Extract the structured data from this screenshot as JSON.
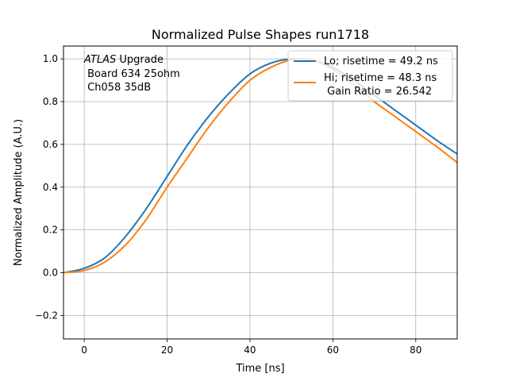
{
  "chart_data": {
    "type": "line",
    "title": "Normalized Pulse Shapes run1718",
    "xlabel": "Time [ns]",
    "ylabel": "Normalized Amplitude (A.U.)",
    "xlim": [
      -5,
      90
    ],
    "ylim": [
      -0.31,
      1.06
    ],
    "xticks": [
      0,
      20,
      40,
      60,
      80
    ],
    "yticks": [
      -0.2,
      0.0,
      0.2,
      0.4,
      0.6,
      0.8,
      1.0
    ],
    "xtick_labels": [
      "0",
      "20",
      "40",
      "60",
      "80"
    ],
    "ytick_labels": [
      "−0.2",
      "0.0",
      "0.2",
      "0.4",
      "0.6",
      "0.8",
      "1.0"
    ],
    "grid": true,
    "legend_position": "top-right",
    "annotation": {
      "italic": "ATLAS",
      "rest": " Upgrade",
      "line2": " Board 634 25ohm",
      "line3": " Ch058 35dB"
    },
    "series": [
      {
        "name": "Lo; risetime = 49.2 ns",
        "color": "#1f77b4",
        "x": [
          -5,
          0,
          5,
          10,
          15,
          20,
          25,
          30,
          35,
          40,
          45,
          50,
          55,
          60,
          65,
          70,
          75,
          80,
          85,
          90
        ],
        "y": [
          0.0,
          0.02,
          0.07,
          0.17,
          0.3,
          0.45,
          0.6,
          0.73,
          0.84,
          0.93,
          0.98,
          1.0,
          0.995,
          0.96,
          0.9,
          0.83,
          0.76,
          0.69,
          0.62,
          0.555
        ]
      },
      {
        "name": "Hi; risetime = 48.3 ns\n Gain Ratio = 26.542",
        "color": "#ff7f0e",
        "x": [
          -5,
          0,
          5,
          10,
          15,
          20,
          25,
          30,
          35,
          40,
          45,
          50,
          55,
          60,
          65,
          70,
          75,
          80,
          85,
          90
        ],
        "y": [
          0.0,
          0.01,
          0.05,
          0.13,
          0.25,
          0.4,
          0.54,
          0.68,
          0.8,
          0.9,
          0.96,
          0.995,
          0.995,
          0.95,
          0.88,
          0.8,
          0.73,
          0.66,
          0.59,
          0.515
        ]
      }
    ]
  }
}
